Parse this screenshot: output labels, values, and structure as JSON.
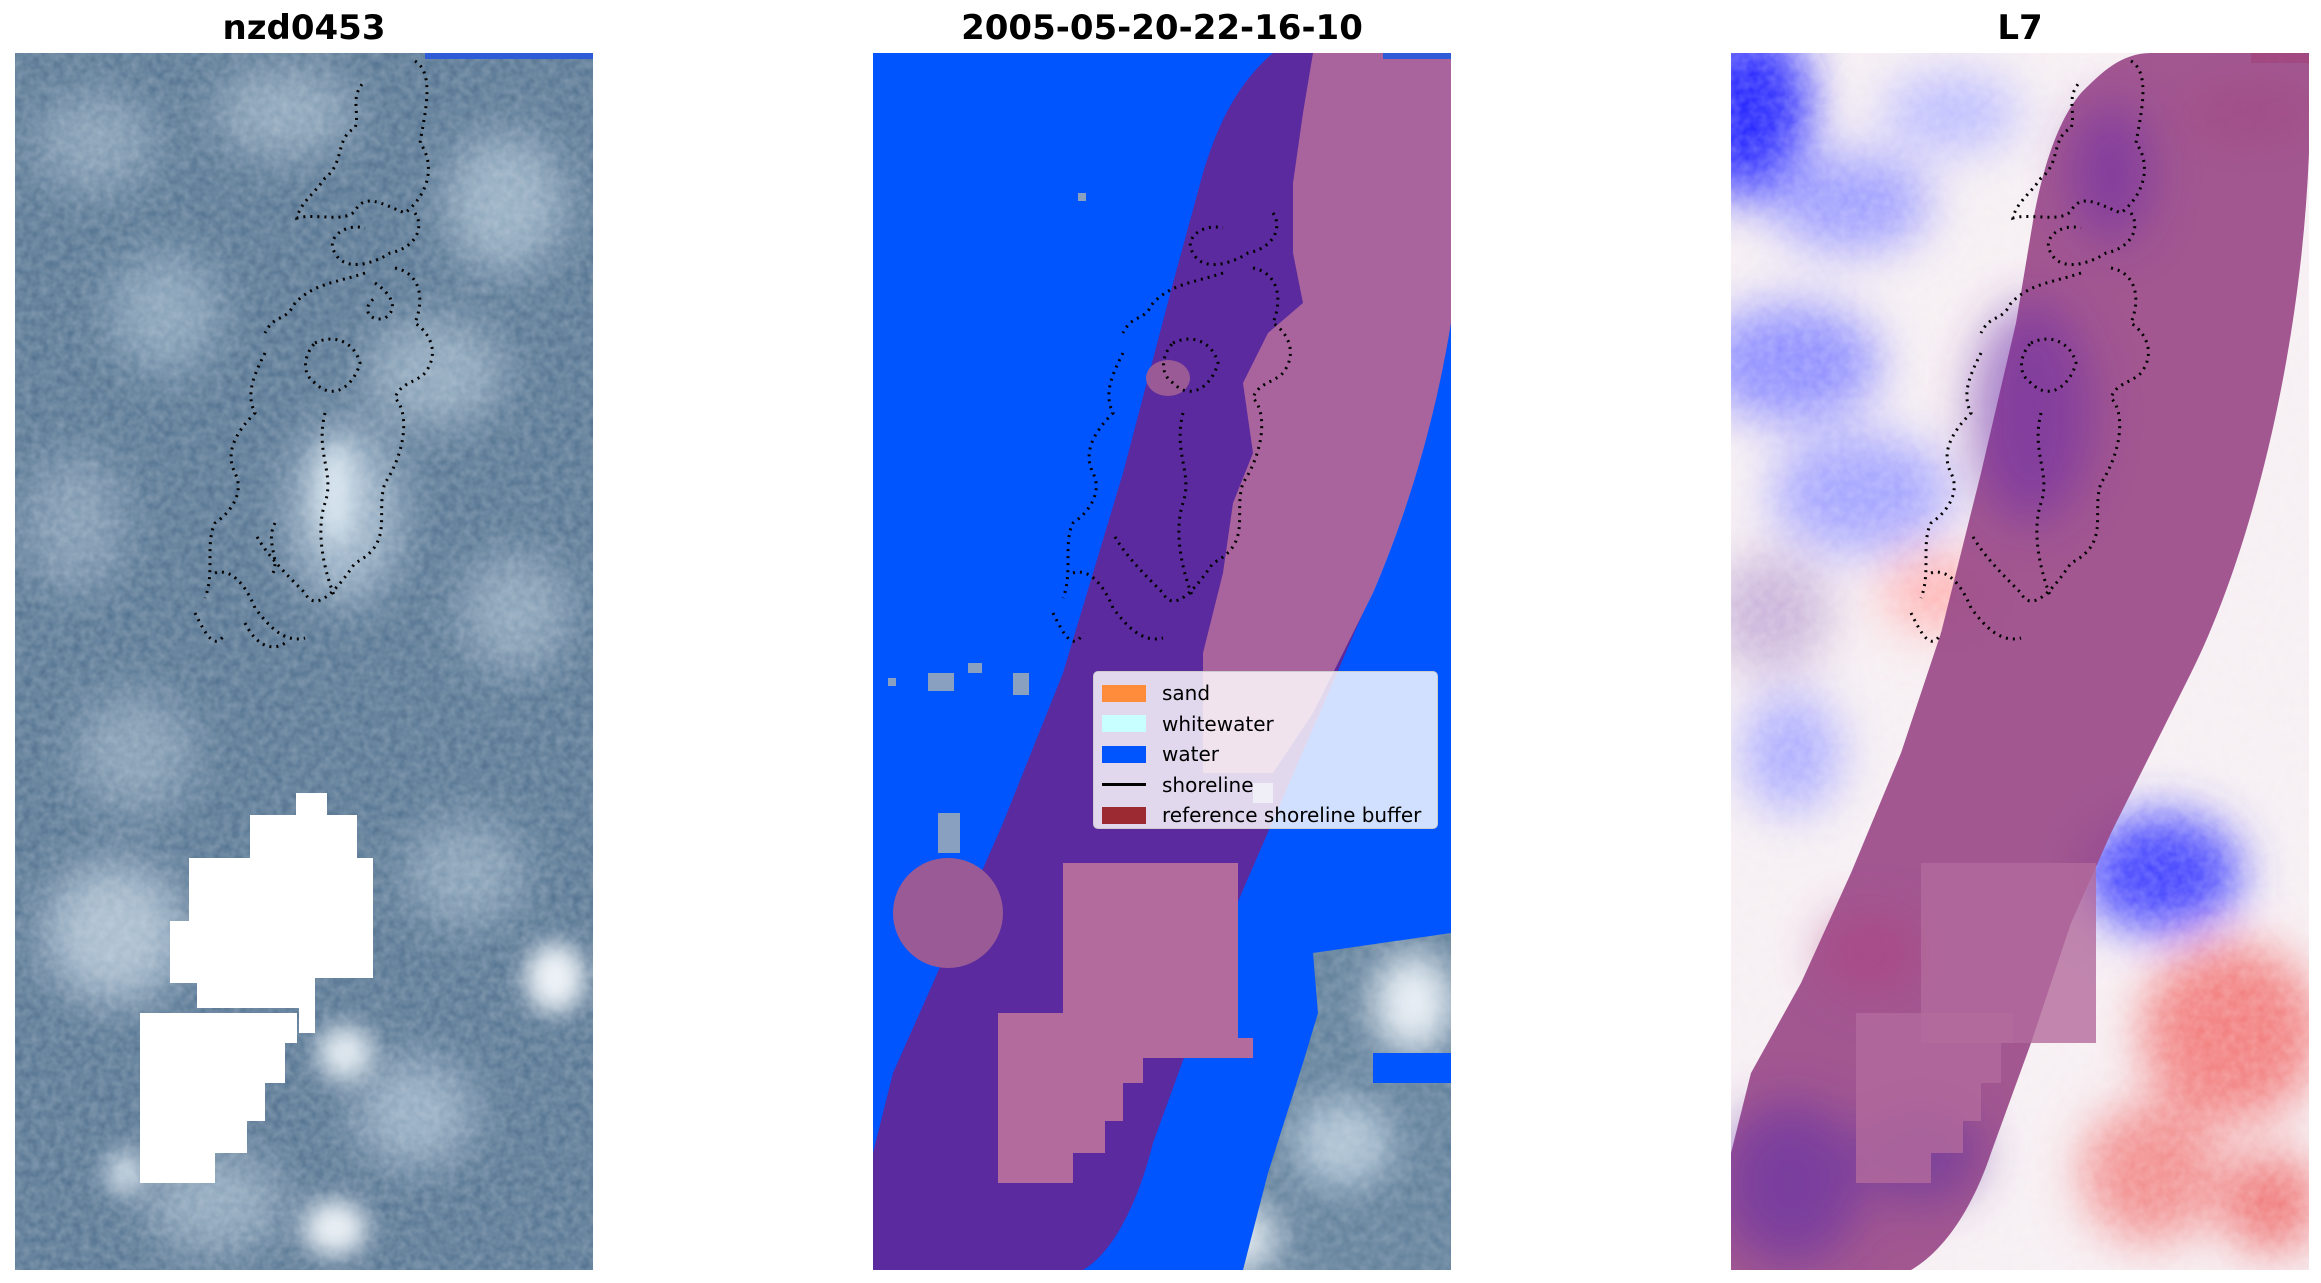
{
  "panels": [
    {
      "title": "nzd0453",
      "view": "rgb-image-with-cloud-mask"
    },
    {
      "title": "2005-05-20-22-16-10",
      "view": "classified-image"
    },
    {
      "title": "L7",
      "view": "water-index-image"
    }
  ],
  "legend": {
    "items": [
      {
        "label": "sand",
        "color": "#ff8c3a",
        "type": "patch"
      },
      {
        "label": "whitewater",
        "color": "#c8ffff",
        "type": "patch"
      },
      {
        "label": "water",
        "color": "#0055ff",
        "type": "patch"
      },
      {
        "label": "shoreline",
        "color": "#000000",
        "type": "line"
      },
      {
        "label": "reference shoreline buffer",
        "color": "#9b2a32",
        "type": "patch"
      }
    ]
  },
  "colors": {
    "water": "#0050ff",
    "buffer_overlay": "#9b2a5a",
    "cloud_mask": "#ffffff",
    "rgb_base": "#4d6e8c",
    "index_positive": "#e83a3a",
    "index_negative": "#2a2aff",
    "shoreline": "#000000"
  }
}
